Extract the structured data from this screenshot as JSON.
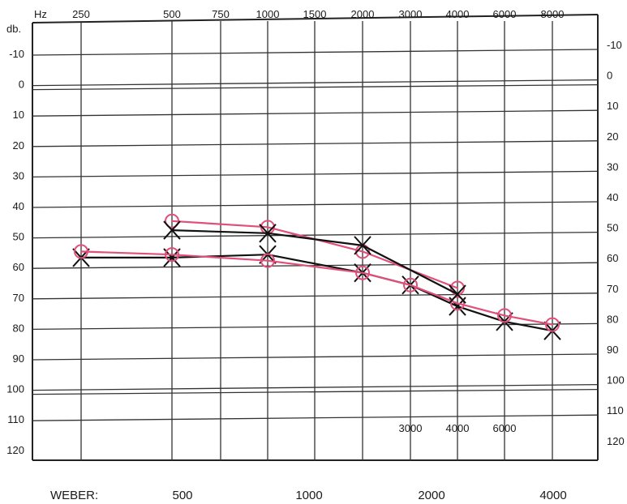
{
  "chart_data": {
    "type": "line",
    "title": "",
    "xlabel": "Hz",
    "ylabel": "db.",
    "top_freq_ticks": [
      "250",
      "500",
      "750",
      "1000",
      "1500",
      "2000",
      "3000",
      "4000",
      "6000",
      "8000"
    ],
    "mid_freq_ticks": [
      "3000",
      "4000",
      "6000"
    ],
    "db_ticks": [
      "-10",
      "0",
      "10",
      "20",
      "30",
      "40",
      "50",
      "60",
      "70",
      "80",
      "90",
      "100",
      "110",
      "120"
    ],
    "ylim": [
      -10,
      120
    ],
    "grid": true,
    "series": [
      {
        "color": "#111111",
        "x": [
          "250",
          "500",
          "1000",
          "2000",
          "3000",
          "4000",
          "6000",
          "8000"
        ],
        "y": [
          57,
          57,
          56,
          62,
          66,
          73,
          78,
          81
        ]
      },
      {
        "color": "#e0507a",
        "x": [
          "250",
          "500",
          "1000",
          "2000",
          "3000",
          "4000",
          "6000",
          "8000"
        ],
        "y": [
          55,
          56,
          58,
          62,
          66,
          72,
          76,
          79
        ]
      },
      {
        "color": "#e0507a",
        "x": [
          "500",
          "1000",
          "2000",
          "4000"
        ],
        "y": [
          45,
          47,
          55,
          67
        ]
      },
      {
        "color": "#111111",
        "x": [
          "500",
          "1000",
          "2000",
          "4000"
        ],
        "y": [
          48,
          49,
          53,
          69
        ]
      }
    ]
  },
  "weber": {
    "label": "WEBER:",
    "values": [
      "500",
      "1000",
      "2000",
      "4000"
    ]
  }
}
